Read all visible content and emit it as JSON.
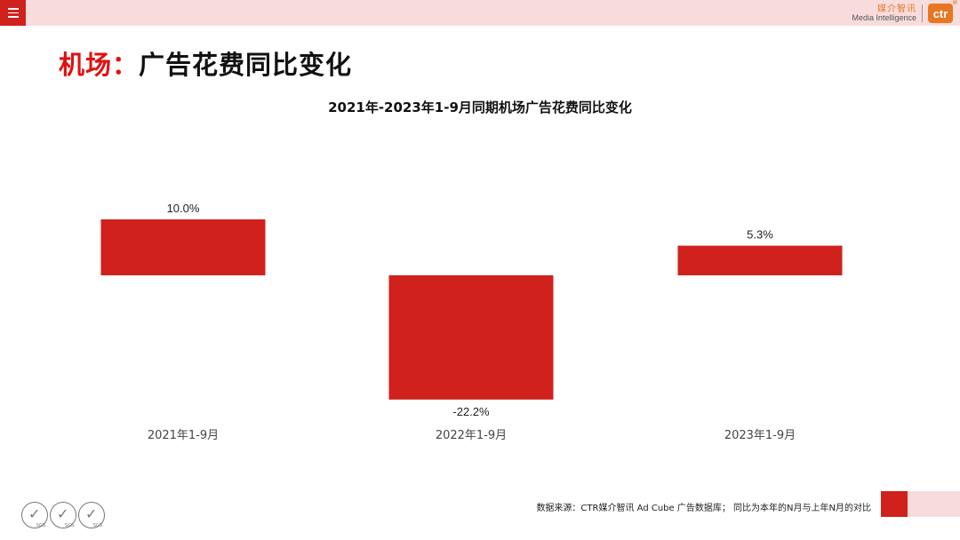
{
  "header": {
    "menu_icon": "hamburger-menu-icon",
    "brand_cn": "媒介智讯",
    "brand_en": "Media Intelligence",
    "brand_logo": "ctr",
    "brand_mark": "®"
  },
  "page": {
    "title_accent": "机场：",
    "title_main": "广告花费同比变化"
  },
  "chart_data": {
    "type": "bar",
    "title": "2021年-2023年1-9月同期机场广告花费同比变化",
    "categories": [
      "2021年1-9月",
      "2022年1-9月",
      "2023年1-9月"
    ],
    "values": [
      10.0,
      -22.2,
      5.3
    ],
    "value_labels": [
      "10.0%",
      "-22.2%",
      "5.3%"
    ],
    "unit": "%",
    "ylim": [
      -22.2,
      10.0
    ],
    "bar_color": "#d0211d",
    "grid": false,
    "xlabel": "",
    "ylabel": ""
  },
  "footer": {
    "source": "数据来源：CTR媒介智讯 Ad Cube 广告数据库； 同比为本年的N月与上年N月的对比",
    "cert_label": "SGS"
  }
}
